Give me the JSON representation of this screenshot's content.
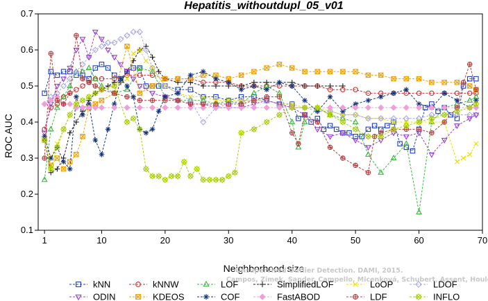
{
  "chart_data": {
    "type": "line",
    "title": "Hepatitis_withoutdupl_05_v01",
    "xlabel": "Neighborhood size",
    "ylabel": "ROC AUC",
    "xlim": [
      0,
      70
    ],
    "ylim": [
      0.1,
      0.7
    ],
    "xticks": [
      1,
      10,
      20,
      30,
      40,
      50,
      60,
      70
    ],
    "yticks": [
      0.1,
      0.2,
      0.3,
      0.4,
      0.5,
      0.6,
      0.7
    ],
    "ytick_labels": [
      "0.1",
      "0.2",
      "0.3",
      "0.4",
      "0.5",
      "0.6",
      "0.7"
    ],
    "legend_position": "bottom",
    "watermark": [
      "Unsupervised Outlier Detection. DAMI, 2015.",
      "Campos, Zimek, Sander, Campello, Micenková, Schubert, Assent, Houle"
    ],
    "series": [
      {
        "name": "kNN",
        "color": "#1a3cc8",
        "marker": "square",
        "x": [
          1,
          2,
          3,
          4,
          5,
          6,
          7,
          8,
          9,
          10,
          11,
          12,
          13,
          14,
          15,
          16,
          17,
          18,
          19,
          20,
          22,
          24,
          26,
          28,
          30,
          32,
          34,
          36,
          38,
          40,
          41,
          42,
          43,
          44,
          45,
          46,
          47,
          48,
          49,
          50,
          51,
          52,
          53,
          54,
          55,
          56,
          57,
          58,
          59,
          60,
          61,
          62,
          63,
          64,
          65,
          66,
          67,
          68,
          69
        ],
        "y": [
          0.48,
          0.54,
          0.53,
          0.54,
          0.54,
          0.53,
          0.53,
          0.52,
          0.55,
          0.56,
          0.55,
          0.53,
          0.52,
          0.54,
          0.55,
          0.55,
          0.5,
          0.5,
          0.5,
          0.5,
          0.49,
          0.49,
          0.47,
          0.47,
          0.46,
          0.47,
          0.47,
          0.46,
          0.45,
          0.45,
          0.41,
          0.42,
          0.4,
          0.41,
          0.38,
          0.39,
          0.38,
          0.37,
          0.37,
          0.36,
          0.36,
          0.38,
          0.39,
          0.38,
          0.39,
          0.4,
          0.34,
          0.33,
          0.32,
          0.38,
          0.44,
          0.45,
          0.43,
          0.44,
          0.42,
          0.41,
          0.5,
          0.52,
          0.52
        ]
      },
      {
        "name": "kNNW",
        "color": "#d03030",
        "marker": "circle",
        "x": [
          1,
          2,
          3,
          4,
          5,
          6,
          7,
          8,
          9,
          10,
          12,
          14,
          16,
          18,
          20,
          22,
          24,
          26,
          28,
          30,
          32,
          34,
          36,
          38,
          40,
          42,
          44,
          46,
          48,
          50,
          52,
          54,
          56,
          58,
          60,
          62,
          64,
          66,
          68,
          69
        ],
        "y": [
          0.38,
          0.44,
          0.45,
          0.47,
          0.48,
          0.49,
          0.5,
          0.51,
          0.52,
          0.52,
          0.52,
          0.53,
          0.53,
          0.53,
          0.52,
          0.52,
          0.52,
          0.51,
          0.51,
          0.51,
          0.5,
          0.5,
          0.5,
          0.5,
          0.5,
          0.5,
          0.5,
          0.49,
          0.49,
          0.49,
          0.48,
          0.48,
          0.48,
          0.48,
          0.48,
          0.48,
          0.48,
          0.48,
          0.48,
          0.48
        ]
      },
      {
        "name": "LOF",
        "color": "#3cb43c",
        "marker": "triangle-up",
        "x": [
          1,
          2,
          3,
          4,
          5,
          6,
          7,
          8,
          9,
          10,
          12,
          14,
          16,
          18,
          20,
          22,
          24,
          26,
          28,
          30,
          32,
          34,
          36,
          38,
          40,
          41,
          42,
          44,
          46,
          48,
          50,
          52,
          54,
          56,
          58,
          60,
          62,
          64,
          66,
          68,
          69
        ],
        "y": [
          0.24,
          0.38,
          0.44,
          0.47,
          0.5,
          0.54,
          0.54,
          0.55,
          0.52,
          0.5,
          0.48,
          0.49,
          0.55,
          0.54,
          0.47,
          0.46,
          0.46,
          0.46,
          0.45,
          0.46,
          0.45,
          0.48,
          0.5,
          0.48,
          0.4,
          0.33,
          0.4,
          0.44,
          0.42,
          0.41,
          0.4,
          0.31,
          0.26,
          0.3,
          0.34,
          0.15,
          0.4,
          0.44,
          0.45,
          0.46,
          0.47
        ]
      },
      {
        "name": "SimplifiedLOF",
        "color": "#1e1e1e",
        "marker": "plus",
        "x": [
          1,
          2,
          3,
          4,
          5,
          6,
          7,
          8,
          9,
          10,
          11,
          12,
          13,
          14,
          15,
          16,
          17,
          18,
          19,
          20,
          22,
          24,
          26,
          28,
          30,
          32,
          34,
          36,
          38,
          40,
          42,
          44,
          46,
          48
        ],
        "y": [
          0.35,
          0.26,
          0.27,
          0.3,
          0.37,
          0.4,
          0.43,
          0.46,
          0.48,
          0.49,
          0.5,
          0.51,
          0.51,
          0.54,
          0.57,
          0.6,
          0.61,
          0.58,
          0.54,
          0.52,
          0.51,
          0.51,
          0.5,
          0.5,
          0.5,
          0.5,
          0.51,
          0.51,
          0.51,
          0.51,
          0.5,
          0.5,
          0.5,
          0.5
        ]
      },
      {
        "name": "LoOP",
        "color": "#e8e000",
        "marker": "x",
        "x": [
          1,
          2,
          3,
          4,
          5,
          6,
          7,
          8,
          9,
          10,
          12,
          14,
          15,
          16,
          17,
          18,
          20,
          22,
          24,
          26,
          28,
          30,
          32,
          34,
          36,
          38,
          40,
          42,
          44,
          46,
          48,
          50,
          52,
          54,
          56,
          58,
          60,
          62,
          64,
          66,
          67,
          68,
          69
        ],
        "y": [
          0.36,
          0.3,
          0.34,
          0.38,
          0.42,
          0.45,
          0.46,
          0.47,
          0.48,
          0.49,
          0.5,
          0.52,
          0.59,
          0.6,
          0.57,
          0.55,
          0.5,
          0.48,
          0.47,
          0.47,
          0.46,
          0.46,
          0.46,
          0.46,
          0.46,
          0.45,
          0.45,
          0.44,
          0.44,
          0.43,
          0.42,
          0.42,
          0.41,
          0.41,
          0.4,
          0.4,
          0.4,
          0.4,
          0.4,
          0.29,
          0.3,
          0.31,
          0.34
        ]
      },
      {
        "name": "LDOF",
        "color": "#a8a8e6",
        "marker": "diamond",
        "x": [
          1,
          2,
          3,
          4,
          5,
          6,
          7,
          8,
          9,
          10,
          11,
          12,
          13,
          14,
          15,
          16,
          17,
          18,
          20,
          22,
          24,
          26,
          28,
          30,
          32,
          34,
          36,
          38,
          40,
          42,
          44,
          46,
          48,
          50,
          52,
          54,
          56,
          58,
          60,
          62,
          64,
          66,
          68,
          69
        ],
        "y": [
          0.45,
          0.47,
          0.48,
          0.5,
          0.52,
          0.54,
          0.56,
          0.58,
          0.6,
          0.61,
          0.62,
          0.62,
          0.63,
          0.64,
          0.65,
          0.65,
          0.6,
          0.55,
          0.5,
          0.48,
          0.46,
          0.4,
          0.44,
          0.45,
          0.46,
          0.46,
          0.46,
          0.45,
          0.44,
          0.44,
          0.43,
          0.43,
          0.42,
          0.42,
          0.41,
          0.41,
          0.41,
          0.41,
          0.41,
          0.42,
          0.42,
          0.42,
          0.42,
          0.42
        ]
      },
      {
        "name": "ODIN",
        "color": "#9a3cd2",
        "marker": "triangle-down",
        "x": [
          1,
          2,
          3,
          4,
          5,
          6,
          7,
          8,
          9,
          10,
          11,
          12,
          13,
          14,
          15,
          16,
          18,
          20,
          22,
          24,
          26,
          28,
          30,
          32,
          34,
          36,
          38,
          40,
          42,
          44,
          46,
          48,
          50,
          52,
          54,
          56,
          58,
          60,
          62,
          64,
          66,
          68,
          69
        ],
        "y": [
          0.37,
          0.45,
          0.5,
          0.52,
          0.55,
          0.6,
          0.63,
          0.58,
          0.65,
          0.63,
          0.6,
          0.58,
          0.56,
          0.54,
          0.52,
          0.5,
          0.48,
          0.47,
          0.46,
          0.45,
          0.45,
          0.44,
          0.44,
          0.44,
          0.45,
          0.46,
          0.45,
          0.44,
          0.42,
          0.38,
          0.36,
          0.37,
          0.35,
          0.33,
          0.35,
          0.37,
          0.36,
          0.37,
          0.31,
          0.35,
          0.39,
          0.41,
          0.42
        ]
      },
      {
        "name": "KDEOS",
        "color": "#f0a000",
        "marker": "square-x",
        "x": [
          1,
          2,
          3,
          4,
          5,
          6,
          7,
          8,
          9,
          10,
          12,
          14,
          16,
          18,
          20,
          22,
          24,
          26,
          28,
          30,
          32,
          34,
          36,
          38,
          40,
          42,
          44,
          46,
          48,
          50,
          52,
          54,
          56,
          58,
          60,
          62,
          64,
          66,
          68,
          69
        ],
        "y": [
          0.35,
          0.28,
          0.3,
          0.27,
          0.29,
          0.31,
          0.36,
          0.44,
          0.45,
          0.46,
          0.48,
          0.61,
          0.48,
          0.5,
          0.52,
          0.52,
          0.52,
          0.53,
          0.53,
          0.52,
          0.53,
          0.54,
          0.55,
          0.56,
          0.55,
          0.54,
          0.54,
          0.54,
          0.54,
          0.54,
          0.53,
          0.53,
          0.52,
          0.52,
          0.52,
          0.51,
          0.51,
          0.51,
          0.5,
          0.49
        ]
      },
      {
        "name": "COF",
        "color": "#143278",
        "marker": "asterisk",
        "x": [
          1,
          2,
          3,
          4,
          5,
          6,
          7,
          8,
          9,
          10,
          11,
          12,
          13,
          14,
          15,
          16,
          17,
          18,
          19,
          20,
          22,
          24,
          26,
          28,
          30,
          32,
          34,
          36,
          38,
          40,
          42,
          44,
          46,
          48,
          50,
          52,
          54,
          56,
          58,
          60,
          62,
          64,
          66,
          68,
          69
        ],
        "y": [
          0.36,
          0.3,
          0.33,
          0.29,
          0.27,
          0.47,
          0.42,
          0.45,
          0.35,
          0.31,
          0.38,
          0.45,
          0.52,
          0.5,
          0.47,
          0.38,
          0.37,
          0.38,
          0.43,
          0.47,
          0.48,
          0.53,
          0.54,
          0.52,
          0.51,
          0.49,
          0.5,
          0.49,
          0.51,
          0.5,
          0.46,
          0.43,
          0.47,
          0.43,
          0.45,
          0.46,
          0.47,
          0.48,
          0.49,
          0.45,
          0.44,
          0.48,
          0.46,
          0.44,
          0.46
        ]
      },
      {
        "name": "FastABOD",
        "color": "#f0a0d8",
        "marker": "diamond-filled",
        "x": [
          1,
          2,
          3,
          4,
          5,
          6,
          7,
          8,
          9,
          10,
          12,
          14,
          16,
          18,
          20,
          22,
          24,
          26,
          28,
          30,
          32,
          34,
          36,
          38,
          40,
          42,
          44,
          46,
          48,
          50,
          52,
          54,
          56,
          58,
          60,
          62,
          64,
          66,
          68,
          69
        ],
        "y": [
          0.45,
          0.46,
          0.47,
          0.45,
          0.45,
          0.44,
          0.44,
          0.44,
          0.44,
          0.44,
          0.44,
          0.44,
          0.44,
          0.44,
          0.44,
          0.44,
          0.44,
          0.44,
          0.44,
          0.44,
          0.44,
          0.44,
          0.44,
          0.44,
          0.44,
          0.44,
          0.44,
          0.44,
          0.44,
          0.44,
          0.44,
          0.44,
          0.44,
          0.44,
          0.44,
          0.44,
          0.44,
          0.44,
          0.44,
          0.44
        ]
      },
      {
        "name": "LDF",
        "color": "#b43c3c",
        "marker": "circle-plus",
        "x": [
          1,
          2,
          3,
          4,
          5,
          6,
          7,
          8,
          9,
          10,
          12,
          14,
          16,
          18,
          20,
          22,
          24,
          26,
          28,
          30,
          32,
          34,
          36,
          38,
          40,
          41,
          42,
          44,
          46,
          48,
          50,
          52,
          53,
          54,
          56,
          58,
          60,
          62,
          64,
          66,
          67,
          68,
          69
        ],
        "y": [
          0.3,
          0.59,
          0.46,
          0.45,
          0.48,
          0.64,
          0.52,
          0.51,
          0.5,
          0.49,
          0.48,
          0.47,
          0.46,
          0.46,
          0.46,
          0.46,
          0.45,
          0.45,
          0.45,
          0.45,
          0.45,
          0.46,
          0.47,
          0.47,
          0.37,
          0.34,
          0.42,
          0.4,
          0.33,
          0.3,
          0.28,
          0.26,
          0.36,
          0.37,
          0.38,
          0.38,
          0.38,
          0.37,
          0.4,
          0.44,
          0.51,
          0.56,
          0.49
        ]
      },
      {
        "name": "INFLO",
        "color": "#a8d000",
        "marker": "star",
        "x": [
          1,
          2,
          3,
          4,
          5,
          6,
          7,
          8,
          9,
          10,
          12,
          14,
          15,
          16,
          17,
          18,
          19,
          20,
          21,
          22,
          23,
          24,
          25,
          26,
          27,
          28,
          29,
          30,
          31,
          32,
          34,
          36,
          38,
          40,
          42,
          44,
          46,
          48,
          50,
          52,
          54,
          56,
          58,
          60,
          62,
          64,
          66,
          68,
          69
        ],
        "y": [
          0.35,
          0.27,
          0.33,
          0.38,
          0.42,
          0.45,
          0.46,
          0.47,
          0.48,
          0.49,
          0.5,
          0.4,
          0.41,
          0.38,
          0.27,
          0.25,
          0.25,
          0.24,
          0.25,
          0.25,
          0.29,
          0.25,
          0.27,
          0.24,
          0.24,
          0.24,
          0.24,
          0.25,
          0.26,
          0.37,
          0.38,
          0.4,
          0.42,
          0.44,
          0.44,
          0.44,
          0.42,
          0.4,
          0.38,
          0.36,
          0.36,
          0.38,
          0.39,
          0.4,
          0.41,
          0.42,
          0.43,
          0.44,
          0.45
        ]
      }
    ]
  }
}
